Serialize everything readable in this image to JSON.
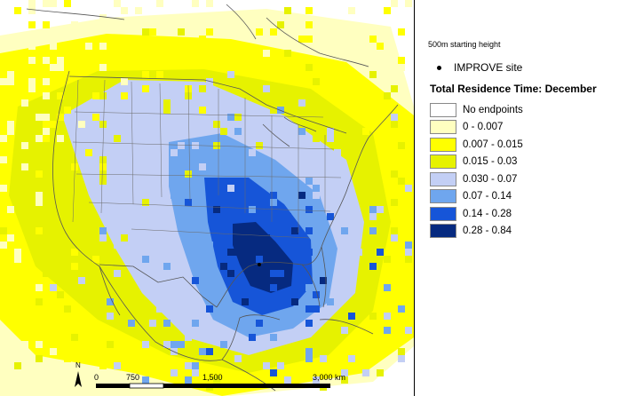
{
  "map": {
    "north_label": "N",
    "scale_ticks": [
      "0",
      "750",
      "1,500",
      "3,000 km"
    ],
    "colors": {
      "water": "#ffffff",
      "boundary": "#555555",
      "state_line": "#6a6a6a"
    }
  },
  "legend": {
    "subtitle": "500m starting height",
    "site_label": "IMPROVE site",
    "title": "Total Residence Time: December",
    "items": [
      {
        "label": "No endpoints",
        "color": "#ffffff"
      },
      {
        "label": "0 - 0.007",
        "color": "#ffffc0"
      },
      {
        "label": "0.007 - 0.015",
        "color": "#ffff00"
      },
      {
        "label": "0.015 - 0.03",
        "color": "#e6f200"
      },
      {
        "label": "0.030 - 0.07",
        "color": "#c3cff5"
      },
      {
        "label": "0.07 - 0.14",
        "color": "#6fa6ee"
      },
      {
        "label": "0.14 - 0.28",
        "color": "#1655d8"
      },
      {
        "label": "0.28 - 0.84",
        "color": "#062a80"
      }
    ]
  }
}
